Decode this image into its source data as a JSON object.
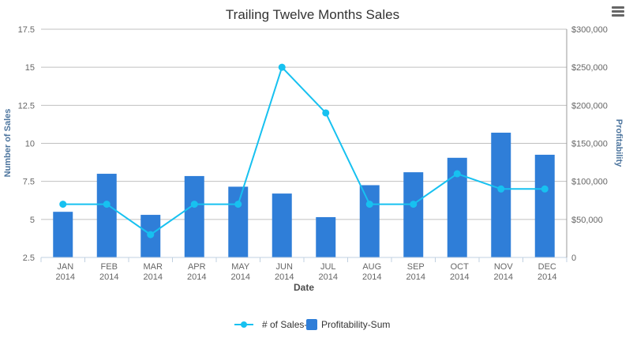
{
  "menu": {
    "icon": "hamburger-menu-icon"
  },
  "colors": {
    "bars": "#2f7ed8",
    "line": "#17c1f0",
    "grid": "#c0c0c0",
    "axis_title": "#4d759e"
  },
  "chart_data": {
    "type": "bar",
    "title": "Trailing Twelve Months Sales",
    "xlabel": "Date",
    "categories": [
      [
        "JAN",
        "2014"
      ],
      [
        "FEB",
        "2014"
      ],
      [
        "MAR",
        "2014"
      ],
      [
        "APR",
        "2014"
      ],
      [
        "MAY",
        "2014"
      ],
      [
        "JUN",
        "2014"
      ],
      [
        "JUL",
        "2014"
      ],
      [
        "AUG",
        "2014"
      ],
      [
        "SEP",
        "2014"
      ],
      [
        "OCT",
        "2014"
      ],
      [
        "NOV",
        "2014"
      ],
      [
        "DEC",
        "2014"
      ]
    ],
    "y_left": {
      "label": "Number of Sales",
      "range": [
        2.5,
        17.5
      ],
      "ticks": [
        "2.5",
        "5",
        "7.5",
        "10",
        "12.5",
        "15",
        "17.5"
      ]
    },
    "y_right": {
      "label": "Profitability",
      "range": [
        0,
        300000
      ],
      "ticks": [
        "0",
        "$50,000",
        "$100,000",
        "$150,000",
        "$200,000",
        "$250,000",
        "$300,000"
      ]
    },
    "grid": true,
    "legend_position": "bottom-center",
    "series": [
      {
        "name": "# of Sales-",
        "type": "line",
        "axis": "left",
        "color": "#17c1f0",
        "values": [
          6,
          6,
          4,
          6,
          6,
          15,
          12,
          6,
          6,
          8,
          7,
          7
        ]
      },
      {
        "name": "Profitability-Sum",
        "type": "bar",
        "axis": "right",
        "color": "#2f7ed8",
        "values": [
          60000,
          110000,
          56000,
          107000,
          93000,
          84000,
          53000,
          95000,
          112000,
          131000,
          164000,
          135000
        ]
      }
    ]
  }
}
